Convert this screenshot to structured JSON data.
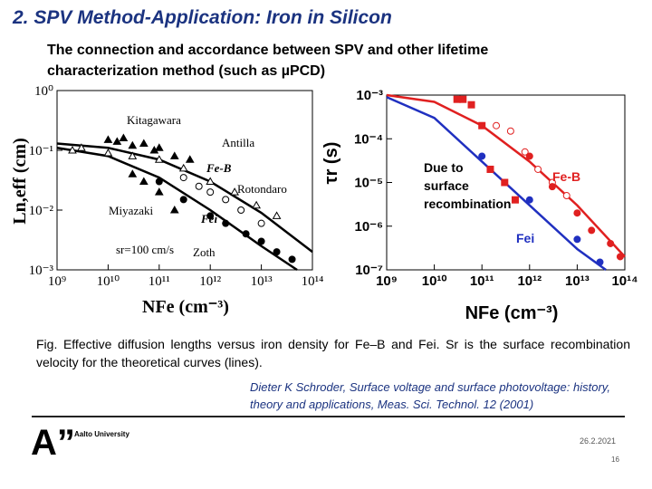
{
  "header": {
    "title": "2. SPV Method-Application: Iron in Silicon",
    "subtitle": "The connection and accordance between SPV and other lifetime characterization method (such as µPCD)"
  },
  "chart_data": [
    {
      "type": "scatter",
      "log_x": true,
      "log_y": true,
      "xlabel": "NFe (cm⁻³)",
      "ylabel": "Ln,eff (cm)",
      "xlim": [
        1000000000.0,
        100000000000000.0
      ],
      "ylim": [
        0.001,
        1
      ],
      "xticks": [
        {
          "value": 1000000000.0,
          "label": "10⁹"
        },
        {
          "value": 10000000000.0,
          "label": "10¹⁰"
        },
        {
          "value": 100000000000.0,
          "label": "10¹¹"
        },
        {
          "value": 1000000000000.0,
          "label": "10¹²"
        },
        {
          "value": 10000000000000.0,
          "label": "10¹³"
        },
        {
          "value": 100000000000000.0,
          "label": "10¹⁴"
        }
      ],
      "yticks": [
        {
          "value": 1,
          "label": "10⁰"
        },
        {
          "value": 0.1,
          "label": "10⁻¹"
        },
        {
          "value": 0.01,
          "label": "10⁻²"
        },
        {
          "value": 0.001,
          "label": "10⁻³"
        }
      ],
      "annotations": [
        "Kitagawara",
        "Antilla",
        "Fe-B",
        "Rotondaro",
        "Miyazaki",
        "Fei",
        "sr=100 cm/s",
        "Zoth"
      ],
      "series": [
        {
          "kind": "line",
          "color": "#000000",
          "x": [
            1000000000.0,
            10000000000.0,
            100000000000.0,
            1000000000000.0,
            10000000000000.0,
            100000000000000.0
          ],
          "values": [
            0.13,
            0.11,
            0.07,
            0.03,
            0.009,
            0.002
          ]
        },
        {
          "kind": "line",
          "color": "#000000",
          "x": [
            1000000000.0,
            10000000000.0,
            100000000000.0,
            1000000000000.0,
            10000000000000.0,
            50000000000000.0
          ],
          "values": [
            0.11,
            0.08,
            0.035,
            0.01,
            0.0025,
            0.001
          ]
        },
        {
          "kind": "scatter",
          "marker": "triangle",
          "filled": true,
          "color": "#000000",
          "x": [
            10000000000.0,
            15000000000.0,
            20000000000.0,
            30000000000.0,
            50000000000.0,
            80000000000.0,
            100000000000.0,
            200000000000.0,
            400000000000.0
          ],
          "values": [
            0.15,
            0.14,
            0.16,
            0.12,
            0.13,
            0.1,
            0.11,
            0.08,
            0.07
          ]
        },
        {
          "kind": "scatter",
          "marker": "triangle",
          "filled": false,
          "color": "#000000",
          "x": [
            2000000000.0,
            3000000000.0,
            10000000000.0,
            30000000000.0,
            100000000000.0,
            300000000000.0,
            1000000000000.0,
            3000000000000.0,
            8000000000000.0,
            20000000000000.0
          ],
          "values": [
            0.1,
            0.11,
            0.09,
            0.08,
            0.07,
            0.05,
            0.03,
            0.02,
            0.012,
            0.008
          ]
        },
        {
          "kind": "scatter",
          "marker": "circle",
          "filled": true,
          "color": "#000000",
          "x": [
            100000000000.0,
            300000000000.0,
            1000000000000.0,
            2000000000000.0,
            5000000000000.0,
            10000000000000.0,
            20000000000000.0,
            40000000000000.0
          ],
          "values": [
            0.03,
            0.015,
            0.008,
            0.006,
            0.004,
            0.003,
            0.002,
            0.0015
          ]
        },
        {
          "kind": "scatter",
          "marker": "circle",
          "filled": false,
          "color": "#000000",
          "x": [
            300000000000.0,
            600000000000.0,
            1000000000000.0,
            2000000000000.0,
            4000000000000.0,
            10000000000000.0
          ],
          "values": [
            0.035,
            0.025,
            0.02,
            0.015,
            0.01,
            0.006
          ]
        },
        {
          "kind": "scatter",
          "marker": "triangle",
          "filled": true,
          "color": "#000000",
          "x": [
            30000000000.0,
            50000000000.0,
            100000000000.0,
            200000000000.0
          ],
          "values": [
            0.04,
            0.03,
            0.02,
            0.01
          ]
        }
      ]
    },
    {
      "type": "scatter",
      "log_x": true,
      "log_y": true,
      "xlabel": "NFe (cm⁻³)",
      "ylabel": "τr (s)",
      "xlim": [
        1000000000.0,
        100000000000000.0
      ],
      "ylim": [
        1e-07,
        0.001
      ],
      "xticks": [
        {
          "value": 1000000000.0,
          "label": "10⁹"
        },
        {
          "value": 10000000000.0,
          "label": "10¹⁰"
        },
        {
          "value": 100000000000.0,
          "label": "10¹¹"
        },
        {
          "value": 1000000000000.0,
          "label": "10¹²"
        },
        {
          "value": 10000000000000.0,
          "label": "10¹³"
        },
        {
          "value": 100000000000000.0,
          "label": "10¹⁴"
        }
      ],
      "yticks": [
        {
          "value": 0.001,
          "label": "10⁻³"
        },
        {
          "value": 0.0001,
          "label": "10⁻⁴"
        },
        {
          "value": 1e-05,
          "label": "10⁻⁵"
        },
        {
          "value": 1e-06,
          "label": "10⁻⁶"
        },
        {
          "value": 1e-07,
          "label": "10⁻⁷"
        }
      ],
      "annotations": [
        "Due to",
        "surface",
        "recombination",
        "Fe-B",
        "Fei"
      ],
      "series": [
        {
          "kind": "line",
          "color": "#e02020",
          "x": [
            1000000000.0,
            10000000000.0,
            100000000000.0,
            1000000000000.0,
            10000000000000.0,
            100000000000000.0
          ],
          "values": [
            0.001,
            0.0007,
            0.0002,
            3e-05,
            3e-06,
            2e-07
          ]
        },
        {
          "kind": "line",
          "color": "#2030c0",
          "x": [
            1000000000.0,
            10000000000.0,
            100000000000.0,
            1000000000000.0,
            10000000000000.0,
            40000000000000.0
          ],
          "values": [
            0.0009,
            0.0003,
            3e-05,
            3e-06,
            3e-07,
            1e-07
          ]
        },
        {
          "kind": "scatter",
          "marker": "square",
          "filled": true,
          "color": "#e02020",
          "x": [
            30000000000.0,
            40000000000.0,
            60000000000.0,
            100000000000.0,
            150000000000.0,
            300000000000.0,
            500000000000.0
          ],
          "values": [
            0.0008,
            0.0008,
            0.0006,
            0.0002,
            2e-05,
            1e-05,
            4e-06
          ]
        },
        {
          "kind": "scatter",
          "marker": "circle",
          "filled": false,
          "color": "#e02020",
          "x": [
            200000000000.0,
            400000000000.0,
            800000000000.0,
            1500000000000.0,
            3000000000000.0,
            6000000000000.0
          ],
          "values": [
            0.0002,
            0.00015,
            5e-05,
            2e-05,
            1e-05,
            5e-06
          ]
        },
        {
          "kind": "scatter",
          "marker": "circle",
          "filled": true,
          "color": "#e02020",
          "x": [
            1000000000000.0,
            3000000000000.0,
            10000000000000.0,
            20000000000000.0,
            50000000000000.0,
            80000000000000.0
          ],
          "values": [
            4e-05,
            8e-06,
            2e-06,
            8e-07,
            4e-07,
            2e-07
          ]
        },
        {
          "kind": "scatter",
          "marker": "circle",
          "filled": true,
          "color": "#2030c0",
          "x": [
            100000000000.0,
            1000000000000.0,
            10000000000000.0,
            30000000000000.0
          ],
          "values": [
            4e-05,
            4e-06,
            5e-07,
            1.5e-07
          ]
        }
      ]
    }
  ],
  "caption": "Fig. Effective diffusion lengths versus iron density for Fe–B and Fei. Sr is the surface recombination velocity for the theoretical curves (lines).",
  "reference": "Dieter K Schroder, Surface voltage and surface photovoltage: history, theory and applications, Meas. Sci. Technol. 12 (2001)",
  "footer": {
    "logo": "A”",
    "organization": "Aalto University",
    "date": "26.2.2021",
    "page": "16"
  }
}
